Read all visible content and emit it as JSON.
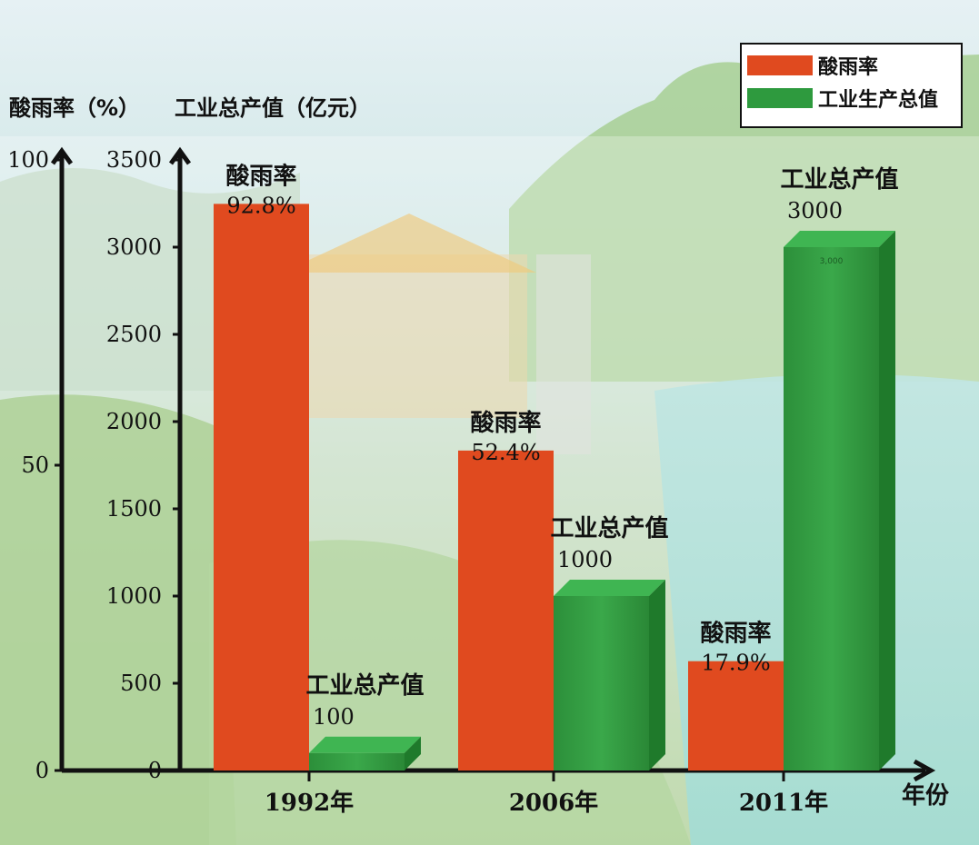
{
  "chart_data": {
    "type": "bar",
    "categories": [
      "1992年",
      "2006年",
      "2011年"
    ],
    "x_axis_title": "年份",
    "left_axis": {
      "title": "酸雨率（%）",
      "ticks": [
        "100",
        "50",
        "0"
      ],
      "range": [
        0,
        100
      ]
    },
    "right_axis": {
      "title": "工业总产值（亿元）",
      "ticks": [
        "3500",
        "3000",
        "2500",
        "2000",
        "1500",
        "1000",
        "500",
        "0"
      ],
      "range": [
        0,
        3500
      ]
    },
    "legend": {
      "position": "top-right",
      "items": [
        "酸雨率",
        "工业生产总值"
      ]
    },
    "series": [
      {
        "name": "酸雨率",
        "axis": "left",
        "color": "#e04a1f",
        "values": [
          92.8,
          52.4,
          17.9
        ],
        "labels": [
          "酸雨率",
          "酸雨率",
          "酸雨率"
        ],
        "value_labels": [
          "92.8%",
          "52.4%",
          "17.9%"
        ]
      },
      {
        "name": "工业生产总值",
        "axis": "right",
        "color": "#2e9a3e",
        "values": [
          100,
          1000,
          3000
        ],
        "labels": [
          "工业总产值",
          "工业总产值",
          "工业总产值"
        ],
        "value_labels": [
          "100",
          "1000",
          "3000"
        ],
        "inner_label": [
          "",
          "",
          "3,000"
        ]
      }
    ],
    "grid": false
  }
}
